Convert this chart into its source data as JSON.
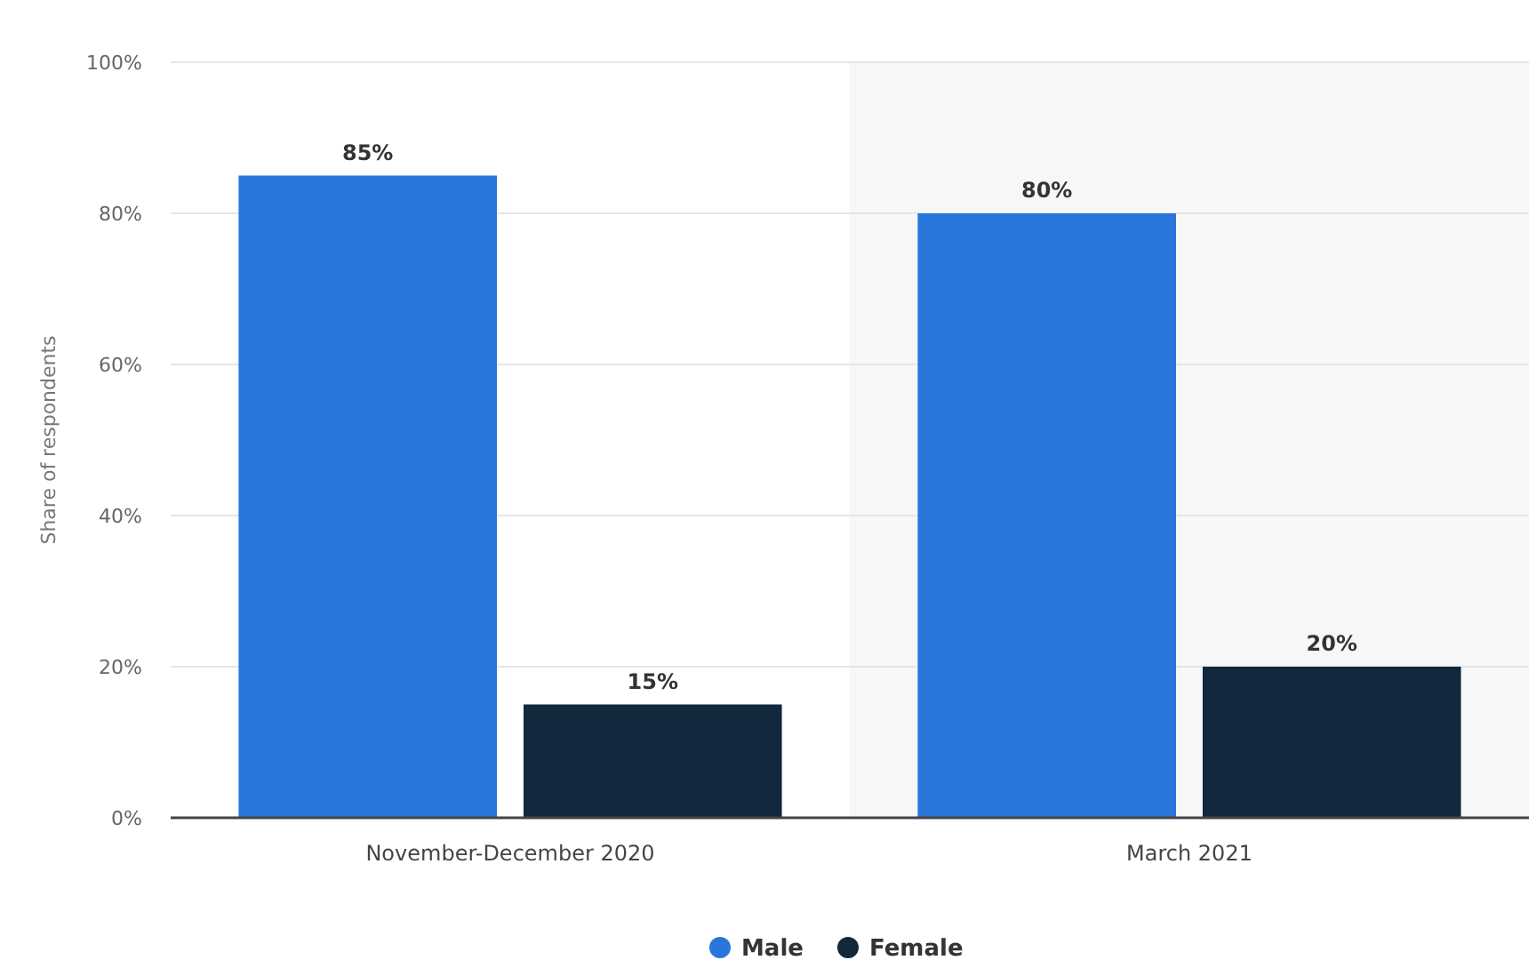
{
  "chart_data": {
    "type": "bar",
    "ylabel": "Share of respondents",
    "categories": [
      "November-December 2020",
      "March 2021"
    ],
    "series": [
      {
        "name": "Male",
        "color": "#2875dc",
        "values": [
          85,
          80
        ],
        "value_labels": [
          "85%",
          "80%"
        ]
      },
      {
        "name": "Female",
        "color": "#12283d",
        "values": [
          15,
          20
        ],
        "value_labels": [
          "15%",
          "20%"
        ]
      }
    ],
    "ylim": [
      0,
      100
    ],
    "yticks": [
      {
        "value": 0,
        "label": "0%"
      },
      {
        "value": 20,
        "label": "20%"
      },
      {
        "value": 40,
        "label": "40%"
      },
      {
        "value": 60,
        "label": "60%"
      },
      {
        "value": 80,
        "label": "80%"
      },
      {
        "value": 100,
        "label": "100%"
      }
    ],
    "bands": [
      {
        "axis": "x",
        "from": "March 2021",
        "to": "March 2021",
        "color": "#f7f7f7"
      }
    ],
    "grid": "y",
    "legend": "bottom"
  }
}
